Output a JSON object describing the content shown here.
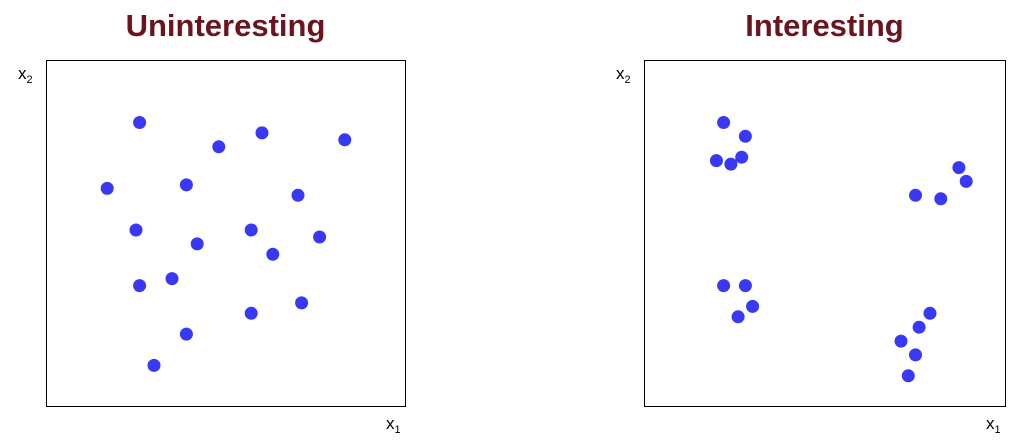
{
  "panels": [
    {
      "title": "Uninteresting",
      "xlabel_base": "x",
      "xlabel_sub": "1",
      "ylabel_base": "x",
      "ylabel_sub": "2"
    },
    {
      "title": "Interesting",
      "xlabel_base": "x",
      "xlabel_sub": "1",
      "ylabel_base": "x",
      "ylabel_sub": "2"
    }
  ],
  "colors": {
    "title": "#6b1420",
    "points": "#3838f5",
    "frame": "#000000"
  },
  "chart_data": [
    {
      "type": "scatter",
      "title": "Uninteresting",
      "xlabel": "x1",
      "ylabel": "x2",
      "xlim": [
        0,
        1
      ],
      "ylim": [
        0,
        1
      ],
      "grid": false,
      "points": [
        {
          "x": 0.26,
          "y": 0.82
        },
        {
          "x": 0.48,
          "y": 0.75
        },
        {
          "x": 0.6,
          "y": 0.79
        },
        {
          "x": 0.83,
          "y": 0.77
        },
        {
          "x": 0.17,
          "y": 0.63
        },
        {
          "x": 0.39,
          "y": 0.64
        },
        {
          "x": 0.7,
          "y": 0.61
        },
        {
          "x": 0.25,
          "y": 0.51
        },
        {
          "x": 0.42,
          "y": 0.47
        },
        {
          "x": 0.57,
          "y": 0.51
        },
        {
          "x": 0.63,
          "y": 0.44
        },
        {
          "x": 0.76,
          "y": 0.49
        },
        {
          "x": 0.35,
          "y": 0.37
        },
        {
          "x": 0.26,
          "y": 0.35
        },
        {
          "x": 0.57,
          "y": 0.27
        },
        {
          "x": 0.71,
          "y": 0.3
        },
        {
          "x": 0.39,
          "y": 0.21
        },
        {
          "x": 0.3,
          "y": 0.12
        }
      ]
    },
    {
      "type": "scatter",
      "title": "Interesting",
      "xlabel": "x1",
      "ylabel": "x2",
      "xlim": [
        0,
        1
      ],
      "ylim": [
        0,
        1
      ],
      "grid": false,
      "points": [
        {
          "x": 0.22,
          "y": 0.82
        },
        {
          "x": 0.28,
          "y": 0.78
        },
        {
          "x": 0.2,
          "y": 0.71
        },
        {
          "x": 0.24,
          "y": 0.7
        },
        {
          "x": 0.27,
          "y": 0.72
        },
        {
          "x": 0.87,
          "y": 0.69
        },
        {
          "x": 0.89,
          "y": 0.65
        },
        {
          "x": 0.75,
          "y": 0.61
        },
        {
          "x": 0.82,
          "y": 0.6
        },
        {
          "x": 0.22,
          "y": 0.35
        },
        {
          "x": 0.28,
          "y": 0.35
        },
        {
          "x": 0.3,
          "y": 0.29
        },
        {
          "x": 0.26,
          "y": 0.26
        },
        {
          "x": 0.79,
          "y": 0.27
        },
        {
          "x": 0.76,
          "y": 0.23
        },
        {
          "x": 0.71,
          "y": 0.19
        },
        {
          "x": 0.75,
          "y": 0.15
        },
        {
          "x": 0.73,
          "y": 0.09
        }
      ]
    }
  ]
}
